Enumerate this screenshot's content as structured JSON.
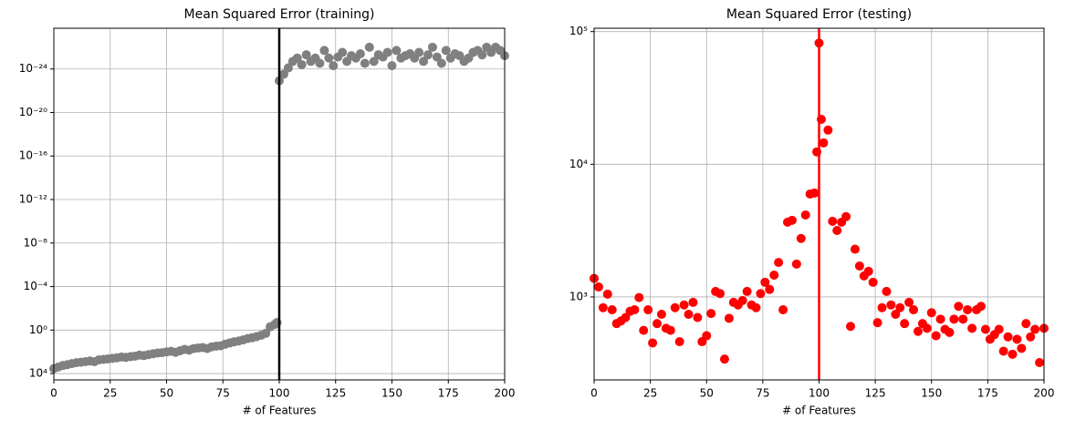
{
  "chart_data": [
    {
      "type": "scatter",
      "title": "Mean Squared Error (training)",
      "xlabel": "# of Features",
      "color": "#808080",
      "log_y": true,
      "grid": true,
      "vline": {
        "x": 100,
        "color": "#000000"
      },
      "xlim": [
        0,
        200
      ],
      "xticks": [
        0,
        25,
        50,
        75,
        100,
        125,
        150,
        175,
        200
      ],
      "ylim": [
        38000,
        1.8e-28
      ],
      "yticks": [
        {
          "value": 10000.0,
          "label": "10⁴"
        },
        {
          "value": 1,
          "label": "10⁰"
        },
        {
          "value": 0.0001,
          "label": "10⁻⁴"
        },
        {
          "value": 1e-08,
          "label": "10⁻⁸"
        },
        {
          "value": 1e-12,
          "label": "10⁻¹²"
        },
        {
          "value": 1e-16,
          "label": "10⁻¹⁶"
        },
        {
          "value": 1e-20,
          "label": "10⁻²⁰"
        },
        {
          "value": 1e-24,
          "label": "10⁻²⁴"
        }
      ],
      "x": [
        0,
        2,
        4,
        6,
        8,
        10,
        12,
        14,
        16,
        18,
        20,
        22,
        24,
        26,
        28,
        30,
        32,
        34,
        36,
        38,
        40,
        42,
        44,
        46,
        48,
        50,
        52,
        54,
        56,
        58,
        60,
        62,
        64,
        66,
        68,
        70,
        72,
        74,
        76,
        78,
        80,
        82,
        84,
        86,
        88,
        90,
        92,
        94,
        96,
        98,
        99,
        100,
        102,
        104,
        106,
        108,
        110,
        112,
        114,
        116,
        118,
        120,
        122,
        124,
        126,
        128,
        130,
        132,
        134,
        136,
        138,
        140,
        142,
        144,
        146,
        148,
        150,
        152,
        154,
        156,
        158,
        160,
        162,
        164,
        166,
        168,
        170,
        172,
        174,
        176,
        178,
        180,
        182,
        184,
        186,
        188,
        190,
        192,
        194,
        196,
        198,
        200
      ],
      "values": [
        3500,
        2500,
        1800,
        1500,
        1200,
        1000,
        900,
        800,
        700,
        800,
        550,
        500,
        450,
        400,
        350,
        300,
        320,
        280,
        250,
        200,
        220,
        180,
        150,
        130,
        120,
        100,
        90,
        110,
        80,
        60,
        70,
        50,
        45,
        40,
        50,
        35,
        30,
        28,
        20,
        15,
        12,
        10,
        8,
        6,
        5,
        4,
        3,
        2,
        0.5,
        0.3,
        0.2,
        1.2e-23,
        3e-24,
        8e-25,
        2e-25,
        1e-25,
        4e-25,
        5e-26,
        2e-25,
        1e-25,
        3e-25,
        2e-26,
        1e-25,
        5e-25,
        8e-26,
        3e-26,
        2e-25,
        6e-26,
        1e-25,
        4e-26,
        3e-25,
        1e-26,
        2e-25,
        5e-26,
        8e-26,
        3e-26,
        5e-25,
        2e-26,
        1e-25,
        6e-26,
        4e-26,
        1e-25,
        3e-26,
        2e-25,
        5e-26,
        1e-26,
        8e-26,
        3e-25,
        2e-26,
        1e-25,
        4e-26,
        6e-26,
        2e-25,
        1e-25,
        3e-26,
        2e-26,
        5e-26,
        1e-26,
        3e-26,
        1e-26,
        2e-26,
        6e-26
      ]
    },
    {
      "type": "scatter",
      "title": "Mean Squared Error (testing)",
      "xlabel": "# of Features",
      "color": "#ff0000",
      "log_y": true,
      "grid": true,
      "vline": {
        "x": 100,
        "color": "#ff0000"
      },
      "xlim": [
        0,
        200
      ],
      "xticks": [
        0,
        25,
        50,
        75,
        100,
        125,
        150,
        175,
        200
      ],
      "ylim": [
        237,
        106000
      ],
      "yticks": [
        {
          "value": 1000,
          "label": "10³"
        },
        {
          "value": 10000,
          "label": "10⁴"
        },
        {
          "value": 100000,
          "label": "10⁵"
        }
      ],
      "x": [
        0,
        2,
        4,
        6,
        8,
        10,
        12,
        14,
        16,
        18,
        20,
        22,
        24,
        26,
        28,
        30,
        32,
        34,
        36,
        38,
        40,
        42,
        44,
        46,
        48,
        50,
        52,
        54,
        56,
        58,
        60,
        62,
        64,
        66,
        68,
        70,
        72,
        74,
        76,
        78,
        80,
        82,
        84,
        86,
        88,
        90,
        92,
        94,
        96,
        98,
        99,
        100,
        101,
        102,
        104,
        106,
        108,
        110,
        112,
        114,
        116,
        118,
        120,
        122,
        124,
        126,
        128,
        130,
        132,
        134,
        136,
        138,
        140,
        142,
        144,
        146,
        148,
        150,
        152,
        154,
        156,
        158,
        160,
        162,
        164,
        166,
        168,
        170,
        172,
        174,
        176,
        178,
        180,
        182,
        184,
        186,
        188,
        190,
        192,
        194,
        196,
        198,
        200
      ],
      "values": [
        1380,
        1190,
        830,
        1050,
        800,
        630,
        660,
        700,
        780,
        800,
        990,
        560,
        800,
        450,
        630,
        740,
        580,
        560,
        830,
        460,
        870,
        740,
        910,
        700,
        460,
        510,
        750,
        1100,
        1060,
        340,
        690,
        910,
        870,
        940,
        1100,
        870,
        830,
        1060,
        1290,
        1140,
        1460,
        1820,
        800,
        3660,
        3780,
        1770,
        2760,
        4150,
        5970,
        6070,
        12400,
        82000,
        21800,
        14500,
        18100,
        3720,
        3170,
        3660,
        4030,
        600,
        2290,
        1710,
        1440,
        1560,
        1290,
        640,
        830,
        1100,
        870,
        740,
        830,
        630,
        910,
        800,
        550,
        630,
        580,
        760,
        510,
        680,
        570,
        540,
        680,
        850,
        680,
        800,
        580,
        800,
        850,
        570,
        480,
        520,
        570,
        390,
        500,
        370,
        480,
        410,
        630,
        500,
        570,
        320,
        580
      ]
    }
  ]
}
